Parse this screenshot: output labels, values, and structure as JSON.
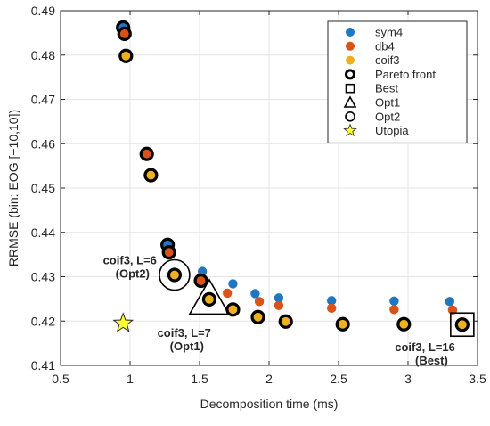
{
  "chart_data": {
    "type": "scatter",
    "xlabel": "Decomposition time (ms)",
    "ylabel": "RRMSE (bin: EOG [−10,10])",
    "xlim": [
      0.5,
      3.5
    ],
    "ylim": [
      0.41,
      0.49
    ],
    "xticks": [
      "0.5",
      "1",
      "1.5",
      "2",
      "2.5",
      "3",
      "3.5"
    ],
    "yticks": [
      "0.41",
      "0.42",
      "0.43",
      "0.44",
      "0.45",
      "0.46",
      "0.47",
      "0.48",
      "0.49"
    ],
    "grid": true,
    "legend_position": "top-right",
    "colors": {
      "sym4": "#1f77c4",
      "db4": "#d95319",
      "coif3": "#edb120",
      "utopia": "#ffff33"
    },
    "series": [
      {
        "name": "sym4",
        "marker": "circle",
        "points": [
          {
            "x": 0.95,
            "y": 0.4862
          },
          {
            "x": 0.96,
            "y": 0.4858
          },
          {
            "x": 1.27,
            "y": 0.4372
          },
          {
            "x": 1.52,
            "y": 0.4312
          },
          {
            "x": 1.74,
            "y": 0.4284
          },
          {
            "x": 1.9,
            "y": 0.4262
          },
          {
            "x": 2.07,
            "y": 0.4252
          },
          {
            "x": 2.45,
            "y": 0.4246
          },
          {
            "x": 2.9,
            "y": 0.4245
          },
          {
            "x": 3.3,
            "y": 0.4244
          }
        ]
      },
      {
        "name": "db4",
        "marker": "circle",
        "points": [
          {
            "x": 0.96,
            "y": 0.4848
          },
          {
            "x": 1.12,
            "y": 0.4577
          },
          {
            "x": 1.28,
            "y": 0.4355
          },
          {
            "x": 1.51,
            "y": 0.4291
          },
          {
            "x": 1.7,
            "y": 0.4263
          },
          {
            "x": 1.93,
            "y": 0.4244
          },
          {
            "x": 2.07,
            "y": 0.4235
          },
          {
            "x": 2.45,
            "y": 0.4229
          },
          {
            "x": 2.9,
            "y": 0.4226
          },
          {
            "x": 3.32,
            "y": 0.4225
          }
        ]
      },
      {
        "name": "coif3",
        "marker": "circle",
        "points": [
          {
            "x": 0.97,
            "y": 0.4798
          },
          {
            "x": 1.15,
            "y": 0.4529
          },
          {
            "x": 1.32,
            "y": 0.4304
          },
          {
            "x": 1.57,
            "y": 0.4249
          },
          {
            "x": 1.74,
            "y": 0.4226
          },
          {
            "x": 1.92,
            "y": 0.4209
          },
          {
            "x": 2.12,
            "y": 0.4199
          },
          {
            "x": 2.53,
            "y": 0.4193
          },
          {
            "x": 2.97,
            "y": 0.4193
          },
          {
            "x": 3.39,
            "y": 0.4192
          }
        ]
      },
      {
        "name": "Utopia",
        "marker": "star",
        "points": [
          {
            "x": 0.95,
            "y": 0.4195
          }
        ]
      }
    ],
    "pareto_front": [
      {
        "x": 0.95,
        "y": 0.4862,
        "color": "sym4"
      },
      {
        "x": 0.96,
        "y": 0.4848,
        "color": "db4"
      },
      {
        "x": 0.97,
        "y": 0.4798,
        "color": "coif3"
      },
      {
        "x": 1.12,
        "y": 0.4577,
        "color": "db4"
      },
      {
        "x": 1.15,
        "y": 0.4529,
        "color": "coif3"
      },
      {
        "x": 1.27,
        "y": 0.4372,
        "color": "sym4"
      },
      {
        "x": 1.28,
        "y": 0.4355,
        "color": "db4"
      },
      {
        "x": 1.32,
        "y": 0.4304,
        "color": "coif3"
      },
      {
        "x": 1.51,
        "y": 0.4291,
        "color": "db4"
      },
      {
        "x": 1.57,
        "y": 0.4249,
        "color": "coif3"
      },
      {
        "x": 1.74,
        "y": 0.4226,
        "color": "coif3"
      },
      {
        "x": 1.92,
        "y": 0.4209,
        "color": "coif3"
      },
      {
        "x": 2.12,
        "y": 0.4199,
        "color": "coif3"
      },
      {
        "x": 2.53,
        "y": 0.4193,
        "color": "coif3"
      },
      {
        "x": 2.97,
        "y": 0.4193,
        "color": "coif3"
      },
      {
        "x": 3.39,
        "y": 0.4192,
        "color": "coif3"
      }
    ],
    "highlights": [
      {
        "name": "Opt2",
        "marker": "circle",
        "x": 1.32,
        "y": 0.4304,
        "label_line1": "coif3, L=6",
        "label_line2": "(Opt2)",
        "label_side": "left"
      },
      {
        "name": "Opt1",
        "marker": "triangle",
        "x": 1.57,
        "y": 0.4249,
        "label_line1": "coif3, L=7",
        "label_line2": "(Opt1)",
        "label_side": "below"
      },
      {
        "name": "Best",
        "marker": "square",
        "x": 3.39,
        "y": 0.4192,
        "label_line1": "coif3, L=16",
        "label_line2": "(Best)",
        "label_side": "below"
      }
    ],
    "legend": [
      {
        "label": "sym4",
        "symbol": "dot",
        "color": "sym4"
      },
      {
        "label": "db4",
        "symbol": "dot",
        "color": "db4"
      },
      {
        "label": "coif3",
        "symbol": "dot",
        "color": "coif3"
      },
      {
        "label": "Pareto front",
        "symbol": "ring"
      },
      {
        "label": "Best",
        "symbol": "square"
      },
      {
        "label": "Opt1",
        "symbol": "triangle"
      },
      {
        "label": "Opt2",
        "symbol": "circle"
      },
      {
        "label": "Utopia",
        "symbol": "star"
      }
    ]
  }
}
